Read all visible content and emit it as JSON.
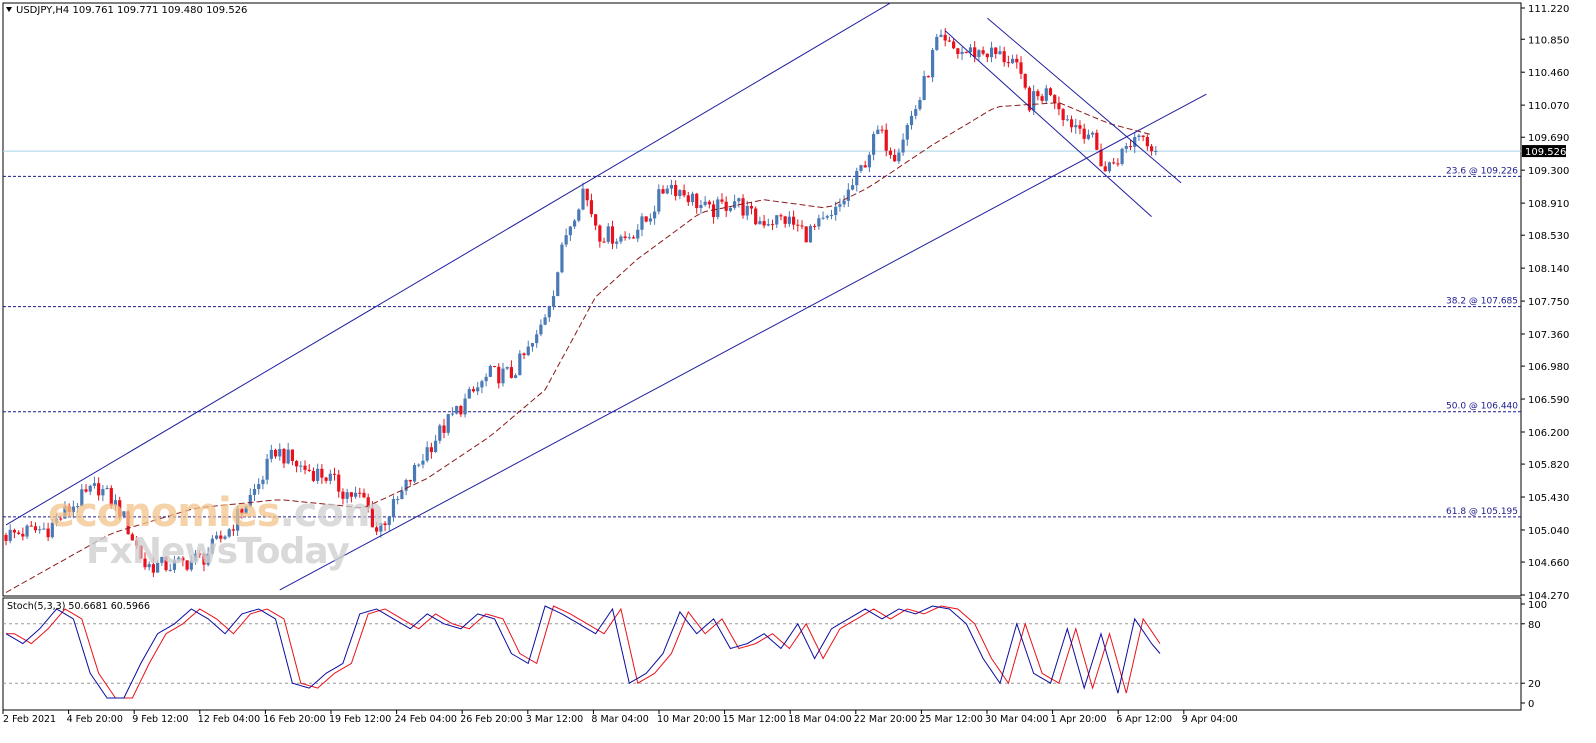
{
  "header": {
    "title": "USDJPY,H4",
    "ohlc": "109.761 109.771 109.480 109.526"
  },
  "current_price": "109.526",
  "watermark": {
    "brand": "economies",
    "brand_suffix": ".com",
    "sub": "FxNewsToday"
  },
  "colors": {
    "up": "#4a7ab5",
    "down": "#e8111c",
    "ma": "#8b1a1a",
    "channel": "#1f1f9f",
    "fib": "#1a1a8f",
    "price_line": "#a8d3e8",
    "stoch_main": "#0c0c9f",
    "stoch_signal": "#e8111c"
  },
  "chart_data": {
    "type": "candlestick",
    "symbol": "USDJPY",
    "timeframe": "H4",
    "ylim": [
      104.27,
      111.22
    ],
    "y_ticks": [
      "111.220",
      "110.850",
      "110.460",
      "110.070",
      "109.690",
      "109.300",
      "108.910",
      "108.530",
      "108.140",
      "107.750",
      "107.360",
      "106.980",
      "106.590",
      "106.200",
      "105.820",
      "105.430",
      "105.040",
      "104.660",
      "104.270"
    ],
    "x_tick_labels": [
      "2 Feb 2021",
      "4 Feb 20:00",
      "9 Feb 12:00",
      "12 Feb 04:00",
      "16 Feb 20:00",
      "19 Feb 12:00",
      "24 Feb 04:00",
      "26 Feb 20:00",
      "3 Mar 12:00",
      "8 Mar 04:00",
      "10 Mar 20:00",
      "15 Mar 12:00",
      "18 Mar 04:00",
      "22 Mar 20:00",
      "25 Mar 12:00",
      "30 Mar 04:00",
      "1 Apr 20:00",
      "6 Apr 12:00",
      "9 Apr 04:00"
    ],
    "close_path": [
      [
        0,
        104.98
      ],
      [
        10,
        105.06
      ],
      [
        17,
        105.38
      ],
      [
        22,
        105.55
      ],
      [
        27,
        105.28
      ],
      [
        33,
        104.62
      ],
      [
        40,
        104.62
      ],
      [
        47,
        104.72
      ],
      [
        53,
        105.05
      ],
      [
        60,
        105.58
      ],
      [
        64,
        105.99
      ],
      [
        70,
        105.78
      ],
      [
        76,
        105.68
      ],
      [
        80,
        105.5
      ],
      [
        85,
        105.4
      ],
      [
        88,
        105.03
      ],
      [
        93,
        105.38
      ],
      [
        100,
        106.0
      ],
      [
        107,
        106.45
      ],
      [
        115,
        106.88
      ],
      [
        120,
        106.88
      ],
      [
        126,
        107.3
      ],
      [
        130,
        107.9
      ],
      [
        133,
        108.55
      ],
      [
        137,
        109.07
      ],
      [
        141,
        108.55
      ],
      [
        147,
        108.5
      ],
      [
        152,
        108.7
      ],
      [
        157,
        109.15
      ],
      [
        162,
        109.0
      ],
      [
        167,
        108.8
      ],
      [
        173,
        108.95
      ],
      [
        178,
        108.7
      ],
      [
        185,
        108.72
      ],
      [
        190,
        108.55
      ],
      [
        196,
        108.72
      ],
      [
        202,
        109.2
      ],
      [
        207,
        109.75
      ],
      [
        211,
        109.5
      ],
      [
        217,
        110.15
      ],
      [
        221,
        110.82
      ],
      [
        226,
        110.7
      ],
      [
        233,
        110.7
      ],
      [
        239,
        110.6
      ],
      [
        243,
        110.1
      ],
      [
        248,
        110.25
      ],
      [
        252,
        109.9
      ],
      [
        257,
        109.75
      ],
      [
        261,
        109.3
      ],
      [
        265,
        109.5
      ],
      [
        269,
        109.75
      ],
      [
        274,
        109.53
      ]
    ],
    "candles_count": 274,
    "ma_path": [
      [
        0,
        104.3
      ],
      [
        25,
        105.0
      ],
      [
        45,
        105.3
      ],
      [
        65,
        105.4
      ],
      [
        85,
        105.3
      ],
      [
        100,
        105.65
      ],
      [
        115,
        106.15
      ],
      [
        128,
        106.7
      ],
      [
        140,
        107.8
      ],
      [
        150,
        108.25
      ],
      [
        165,
        108.8
      ],
      [
        180,
        108.95
      ],
      [
        195,
        108.85
      ],
      [
        205,
        109.1
      ],
      [
        220,
        109.6
      ],
      [
        235,
        110.05
      ],
      [
        250,
        110.1
      ],
      [
        262,
        109.85
      ],
      [
        272,
        109.72
      ]
    ],
    "fibonacci": [
      {
        "label": "23.6 @ 109.226",
        "value": 109.226
      },
      {
        "label": "38.2 @ 107.685",
        "value": 107.685
      },
      {
        "label": "50.0 @ 106.440",
        "value": 106.44
      },
      {
        "label": "61.8 @ 105.195",
        "value": 105.195
      }
    ],
    "ascending_channel": {
      "upper": [
        [
          0,
          105.1
        ],
        [
          210,
          111.28
        ]
      ],
      "lower": [
        [
          65,
          104.33
        ],
        [
          285,
          110.2
        ]
      ],
      "lower_ext_note": "lower line extends to 9 Apr"
    },
    "descending_channel": {
      "upper": [
        [
          233,
          111.1
        ],
        [
          279,
          109.15
        ]
      ],
      "lower": [
        [
          223,
          110.95
        ],
        [
          272,
          108.75
        ]
      ]
    },
    "stochastic": {
      "label": "Stoch(5,3,3) 50.6681 60.5966",
      "main": 50.6681,
      "signal": 60.5966,
      "levels": [
        80,
        20
      ],
      "y_ticks": [
        "100",
        "80",
        "20",
        "0"
      ],
      "main_path": [
        [
          0,
          70
        ],
        [
          4,
          60
        ],
        [
          8,
          75
        ],
        [
          12,
          95
        ],
        [
          16,
          85
        ],
        [
          20,
          30
        ],
        [
          24,
          5
        ],
        [
          28,
          5
        ],
        [
          32,
          40
        ],
        [
          36,
          70
        ],
        [
          40,
          80
        ],
        [
          44,
          95
        ],
        [
          48,
          85
        ],
        [
          52,
          70
        ],
        [
          56,
          90
        ],
        [
          60,
          95
        ],
        [
          64,
          85
        ],
        [
          68,
          20
        ],
        [
          72,
          15
        ],
        [
          76,
          30
        ],
        [
          80,
          40
        ],
        [
          84,
          90
        ],
        [
          88,
          95
        ],
        [
          92,
          85
        ],
        [
          96,
          75
        ],
        [
          100,
          90
        ],
        [
          104,
          80
        ],
        [
          108,
          75
        ],
        [
          112,
          90
        ],
        [
          116,
          85
        ],
        [
          120,
          50
        ],
        [
          124,
          40
        ],
        [
          128,
          98
        ],
        [
          132,
          90
        ],
        [
          136,
          80
        ],
        [
          140,
          70
        ],
        [
          144,
          95
        ],
        [
          148,
          20
        ],
        [
          152,
          30
        ],
        [
          156,
          50
        ],
        [
          160,
          92
        ],
        [
          164,
          70
        ],
        [
          168,
          85
        ],
        [
          172,
          55
        ],
        [
          176,
          60
        ],
        [
          180,
          70
        ],
        [
          184,
          55
        ],
        [
          188,
          80
        ],
        [
          192,
          45
        ],
        [
          196,
          75
        ],
        [
          200,
          85
        ],
        [
          204,
          95
        ],
        [
          208,
          85
        ],
        [
          212,
          95
        ],
        [
          216,
          90
        ],
        [
          220,
          98
        ],
        [
          224,
          95
        ],
        [
          228,
          80
        ],
        [
          232,
          45
        ],
        [
          236,
          20
        ],
        [
          240,
          80
        ],
        [
          244,
          30
        ],
        [
          248,
          20
        ],
        [
          252,
          75
        ],
        [
          256,
          15
        ],
        [
          260,
          70
        ],
        [
          264,
          10
        ],
        [
          268,
          85
        ],
        [
          272,
          60
        ],
        [
          274,
          50
        ]
      ]
    }
  }
}
